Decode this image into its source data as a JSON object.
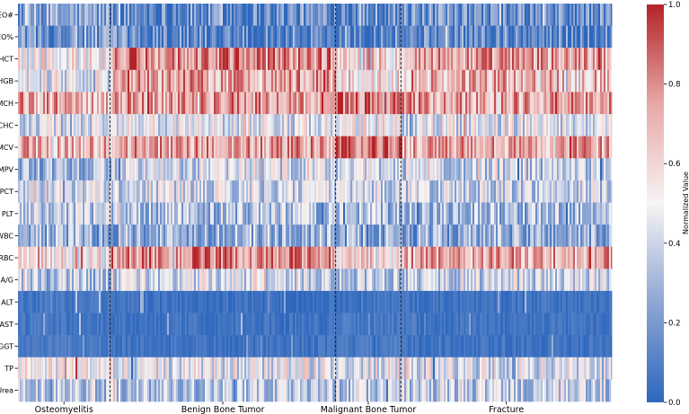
{
  "chart_data": {
    "type": "heatmap",
    "title": "",
    "xlabel": "",
    "ylabel": "",
    "rows": [
      "EO#",
      "EO%",
      "HCT",
      "HGB",
      "MCH",
      "MCHC",
      "MCV",
      "MPV",
      "PCT",
      "PLT",
      "WBC",
      "RBC",
      "A/G",
      "ALT",
      "AST",
      "GGT",
      "TP",
      "Urea"
    ],
    "groups": [
      {
        "name": "Osteomyelitis",
        "fraction": 0.155
      },
      {
        "name": "Benign Bone Tumor",
        "fraction": 0.38
      },
      {
        "name": "Malignant Bone Tumor",
        "fraction": 0.11
      },
      {
        "name": "Fracture",
        "fraction": 0.355
      }
    ],
    "row_group_means": [
      [
        0.22,
        0.15,
        0.18,
        0.14
      ],
      [
        0.2,
        0.13,
        0.16,
        0.12
      ],
      [
        0.52,
        0.8,
        0.62,
        0.75
      ],
      [
        0.48,
        0.74,
        0.58,
        0.7
      ],
      [
        0.72,
        0.76,
        0.82,
        0.74
      ],
      [
        0.42,
        0.46,
        0.48,
        0.45
      ],
      [
        0.7,
        0.74,
        0.84,
        0.72
      ],
      [
        0.32,
        0.42,
        0.4,
        0.38
      ],
      [
        0.45,
        0.42,
        0.42,
        0.4
      ],
      [
        0.36,
        0.33,
        0.3,
        0.33
      ],
      [
        0.28,
        0.28,
        0.26,
        0.25
      ],
      [
        0.55,
        0.78,
        0.58,
        0.72
      ],
      [
        0.34,
        0.42,
        0.38,
        0.4
      ],
      [
        0.06,
        0.04,
        0.06,
        0.05
      ],
      [
        0.06,
        0.05,
        0.07,
        0.05
      ],
      [
        0.08,
        0.05,
        0.07,
        0.05
      ],
      [
        0.5,
        0.45,
        0.46,
        0.44
      ],
      [
        0.38,
        0.36,
        0.36,
        0.37
      ]
    ],
    "colorbar": {
      "label": "Normalized Value",
      "ticks": [
        "0.0",
        "0.2",
        "0.4",
        "0.6",
        "0.8",
        "1.0"
      ],
      "range": [
        0.0,
        1.0
      ],
      "colormap": [
        "#2d67bd",
        "#8ea6d3",
        "#f6f4f4",
        "#e7a9a7",
        "#b42227"
      ]
    }
  }
}
